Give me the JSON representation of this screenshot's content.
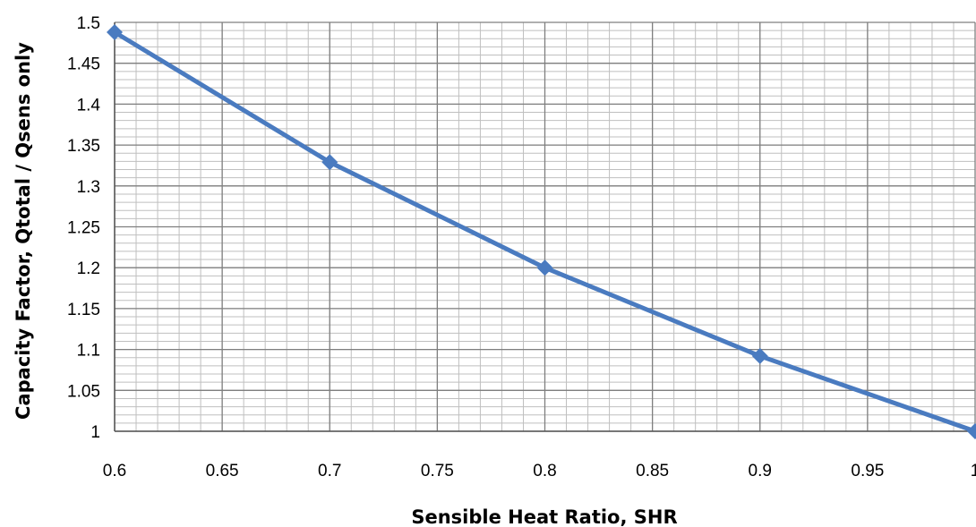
{
  "chart_data": {
    "type": "line",
    "title": "",
    "xlabel": "Sensible Heat Ratio, SHR",
    "ylabel": "Capacity Factor, Qtotal / Qsens only",
    "xlim": [
      0.6,
      1.0
    ],
    "ylim": [
      1.0,
      1.5
    ],
    "x_ticks": [
      0.6,
      0.65,
      0.7,
      0.75,
      0.8,
      0.85,
      0.9,
      0.95,
      1
    ],
    "x_tick_labels": [
      "0.6",
      "0.65",
      "0.7",
      "0.75",
      "0.8",
      "0.85",
      "0.9",
      "0.95",
      "1"
    ],
    "y_ticks": [
      1,
      1.05,
      1.1,
      1.15,
      1.2,
      1.25,
      1.3,
      1.35,
      1.4,
      1.45,
      1.5
    ],
    "y_tick_labels": [
      "1",
      "1.05",
      "1.1",
      "1.15",
      "1.2",
      "1.25",
      "1.3",
      "1.35",
      "1.4",
      "1.45",
      "1.5"
    ],
    "grid": true,
    "minor_grid": true,
    "legend": "none",
    "series": [
      {
        "x": [
          0.6,
          0.7,
          0.8,
          0.9,
          1.0
        ],
        "values": [
          1.488,
          1.329,
          1.2,
          1.092,
          1.0
        ],
        "color": "#4a7bc0",
        "marker": "diamond"
      }
    ],
    "colors": {
      "line": "#4a7bc0",
      "major_grid": "#7f7f7f",
      "minor_grid": "#bfbfbf"
    }
  }
}
